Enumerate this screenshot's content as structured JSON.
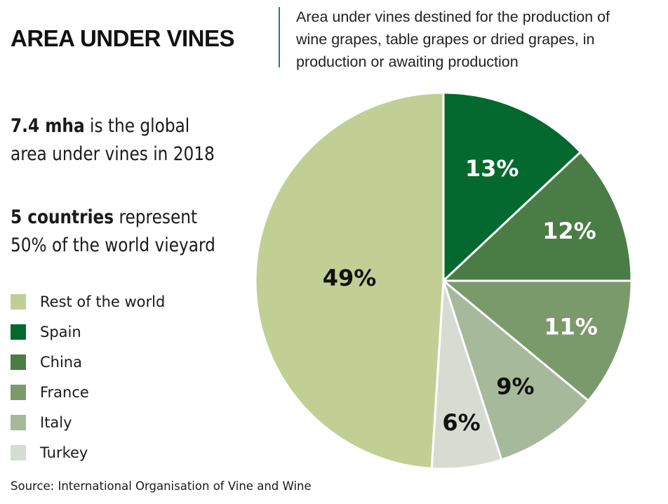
{
  "header": {
    "title": "AREA UNDER VINES",
    "subtitle_lines": [
      "Area under vines destined for the production of",
      "wine grapes, table grapes or dried grapes, in",
      "production or awaiting production"
    ]
  },
  "statements": [
    {
      "bold": "7.4 mha",
      "rest": " is the global",
      "line2": "area under vines in 2018"
    },
    {
      "bold": "5 countries",
      "rest": " represent",
      "line2": "50% of the world vieyard"
    }
  ],
  "source": "Source: International Organisation of Vine and Wine",
  "chart_data": {
    "type": "pie",
    "unit": "%",
    "start_angle_deg": 0,
    "direction": "clockwise",
    "categories": [
      "Spain",
      "China",
      "France",
      "Italy",
      "Turkey",
      "Rest of the world"
    ],
    "values": [
      13,
      12,
      11,
      9,
      6,
      49
    ],
    "labels": [
      "13%",
      "12%",
      "11%",
      "9%",
      "6%",
      "49%"
    ],
    "colors": [
      "#04692f",
      "#4a7c45",
      "#7b9a6b",
      "#a6b99a",
      "#d7dcd2",
      "#c1cf95"
    ],
    "label_colors": [
      "#ffffff",
      "#ffffff",
      "#ffffff",
      "#111111",
      "#111111",
      "#111111"
    ],
    "legend": [
      {
        "label": "Rest of the world",
        "color": "#c1cf95"
      },
      {
        "label": "Spain",
        "color": "#04692f"
      },
      {
        "label": "China",
        "color": "#4a7c45"
      },
      {
        "label": "France",
        "color": "#7b9a6b"
      },
      {
        "label": "Italy",
        "color": "#a6b99a"
      },
      {
        "label": "Turkey",
        "color": "#d7dcd2"
      }
    ]
  }
}
